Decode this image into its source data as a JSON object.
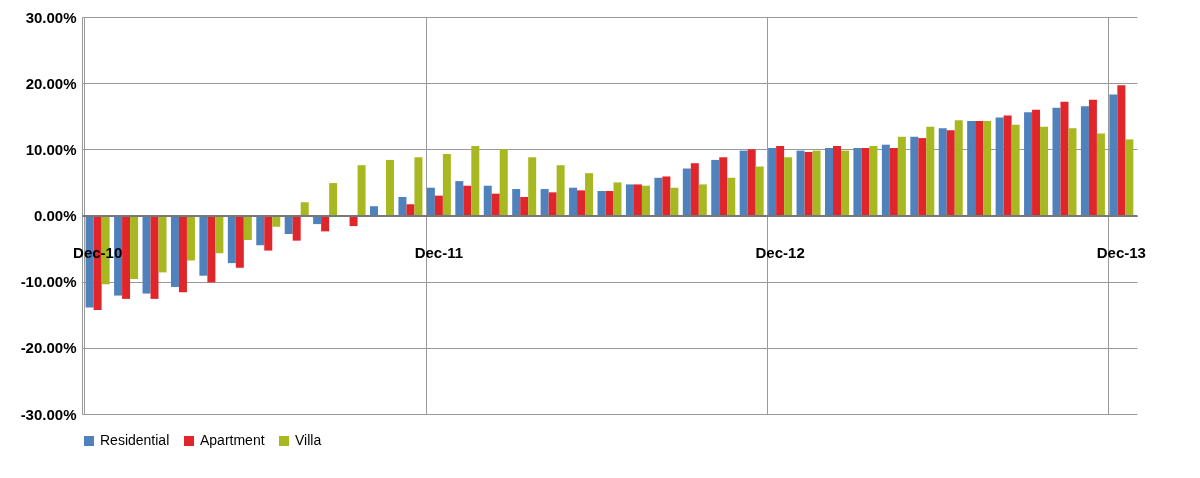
{
  "chart_data": {
    "type": "bar",
    "categories": [
      "Dec-10",
      null,
      null,
      null,
      null,
      null,
      null,
      null,
      null,
      null,
      null,
      null,
      "Dec-11",
      null,
      null,
      null,
      null,
      null,
      null,
      null,
      null,
      null,
      null,
      null,
      "Dec-12",
      null,
      null,
      null,
      null,
      null,
      null,
      null,
      null,
      null,
      null,
      null,
      "Dec-13"
    ],
    "series": [
      {
        "name": "Residential",
        "color": "#4f81bd",
        "values": [
          -13.9,
          -12.1,
          -11.8,
          -10.8,
          -9.1,
          -7.2,
          -4.5,
          -2.8,
          -1.3,
          0,
          1.4,
          2.8,
          4.2,
          5.2,
          4.5,
          4.0,
          4.0,
          4.2,
          3.7,
          4.7,
          5.7,
          7.1,
          8.4,
          9.8,
          10.2,
          9.8,
          10.2,
          10.2,
          10.7,
          11.9,
          13.2,
          14.3,
          14.8,
          15.6,
          16.3,
          16.5,
          18.3
        ]
      },
      {
        "name": "Apartment",
        "color": "#e0262b",
        "values": [
          -14.3,
          -12.6,
          -12.6,
          -11.6,
          -10.1,
          -7.9,
          -5.3,
          -3.8,
          -2.4,
          -1.6,
          0,
          1.7,
          3.0,
          4.5,
          3.3,
          2.8,
          3.5,
          3.8,
          3.7,
          4.7,
          5.9,
          7.9,
          8.8,
          10.0,
          10.5,
          9.6,
          10.5,
          10.2,
          10.2,
          11.7,
          12.9,
          14.3,
          15.1,
          16.0,
          17.2,
          17.5,
          19.7
        ]
      },
      {
        "name": "Villa",
        "color": "#a8b820",
        "values": [
          -10.4,
          -9.6,
          -8.6,
          -6.8,
          -5.7,
          -3.7,
          -1.7,
          2.0,
          4.9,
          7.6,
          8.4,
          8.8,
          9.3,
          10.5,
          10.0,
          8.8,
          7.6,
          6.4,
          5.0,
          4.5,
          4.2,
          4.7,
          5.7,
          7.4,
          8.8,
          9.8,
          9.8,
          10.5,
          11.9,
          13.4,
          14.4,
          14.3,
          13.7,
          13.4,
          13.2,
          12.4,
          11.5
        ]
      }
    ],
    "ylim": [
      -30,
      30
    ],
    "yticks": [
      {
        "value": -30,
        "label": "-30.00%"
      },
      {
        "value": -20,
        "label": "-20.00%"
      },
      {
        "value": -10,
        "label": "-10.00%"
      },
      {
        "value": 0,
        "label": "0.00%"
      },
      {
        "value": 10,
        "label": "10.00%"
      },
      {
        "value": 20,
        "label": "20.00%"
      },
      {
        "value": 30,
        "label": "30.00%"
      }
    ],
    "grid": true,
    "legend": "bottom"
  }
}
